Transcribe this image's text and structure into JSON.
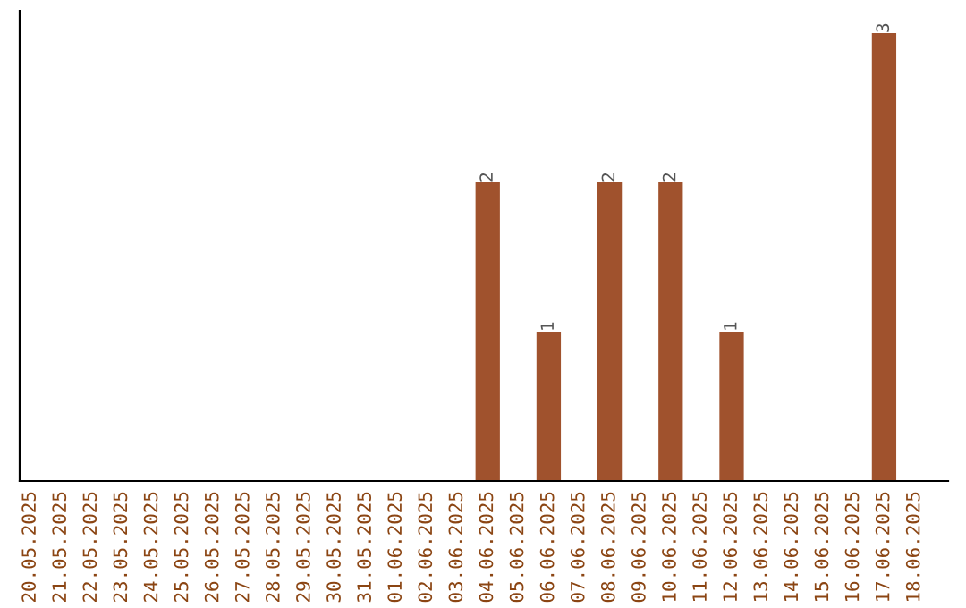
{
  "chart_data": {
    "type": "bar",
    "categories": [
      "20.05.2025",
      "21.05.2025",
      "22.05.2025",
      "23.05.2025",
      "24.05.2025",
      "25.05.2025",
      "26.05.2025",
      "27.05.2025",
      "28.05.2025",
      "29.05.2025",
      "30.05.2025",
      "31.05.2025",
      "01.06.2025",
      "02.06.2025",
      "03.06.2025",
      "04.06.2025",
      "05.06.2025",
      "06.06.2025",
      "07.06.2025",
      "08.06.2025",
      "09.06.2025",
      "10.06.2025",
      "11.06.2025",
      "12.06.2025",
      "13.06.2025",
      "14.06.2025",
      "15.06.2025",
      "16.06.2025",
      "17.06.2025",
      "18.06.2025"
    ],
    "values": [
      null,
      null,
      null,
      null,
      null,
      null,
      null,
      null,
      null,
      null,
      null,
      null,
      null,
      null,
      null,
      2,
      null,
      1,
      null,
      2,
      null,
      2,
      null,
      1,
      null,
      null,
      null,
      null,
      3,
      null
    ],
    "data_labels": true,
    "color": "#a0522d",
    "grid": false,
    "legend": false
  }
}
